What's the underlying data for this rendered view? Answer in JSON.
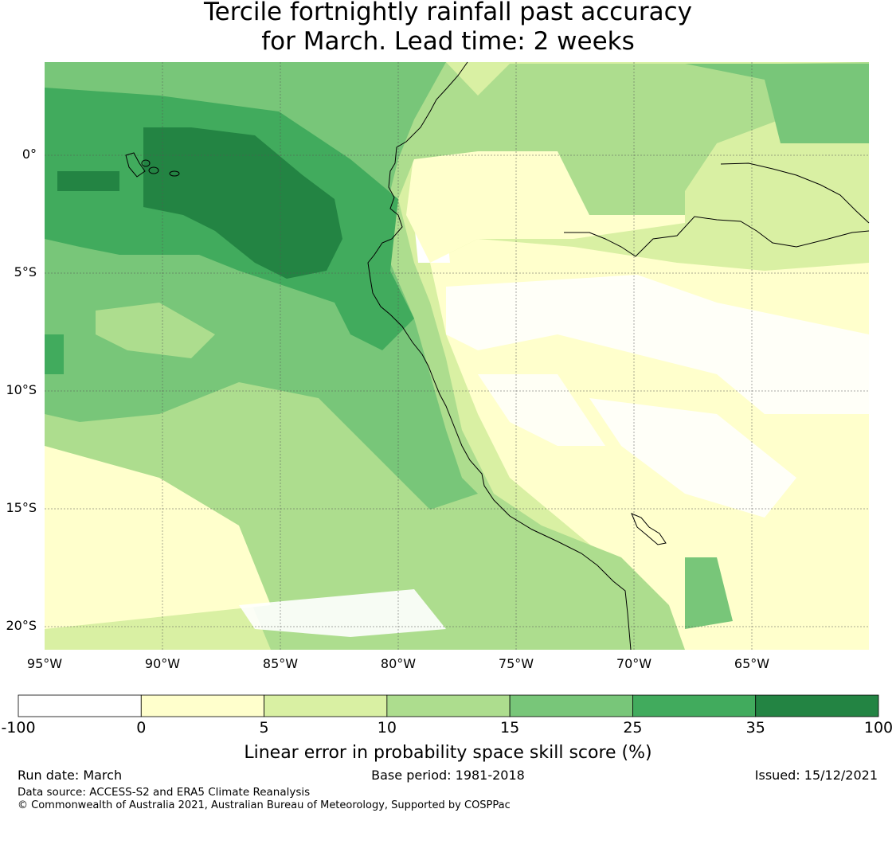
{
  "title_line1": "Tercile fortnightly rainfall past accuracy",
  "title_line2": "for March. Lead time: 2 weeks",
  "map": {
    "lat_ticks": [
      "0°",
      "5°S",
      "10°S",
      "15°S",
      "20°S"
    ],
    "lon_ticks": [
      "95°W",
      "90°W",
      "85°W",
      "80°W",
      "75°W",
      "70°W",
      "65°W"
    ],
    "grid": "on",
    "extent": {
      "lon_min": -95,
      "lon_max": -60,
      "lat_min": -21,
      "lat_max": 4
    }
  },
  "colorbar": {
    "ticks": [
      "-100",
      "0",
      "5",
      "10",
      "15",
      "25",
      "35",
      "100"
    ],
    "colors": [
      "#ffffff",
      "#ffffcc",
      "#d9f0a3",
      "#addd8e",
      "#78c679",
      "#41ab5d",
      "#238443"
    ],
    "label": "Linear error in probability space skill score (%)"
  },
  "footer": {
    "run_date": "Run date: March",
    "base_period": "Base period: 1981-2018",
    "issued": "Issued: 15/12/2021",
    "data_source": "Data source: ACCESS-S2 and ERA5 Climate Reanalysis",
    "copyright": "© Commonwealth of Australia 2021, Australian Bureau of Meteorology, Supported by COSPPac"
  }
}
